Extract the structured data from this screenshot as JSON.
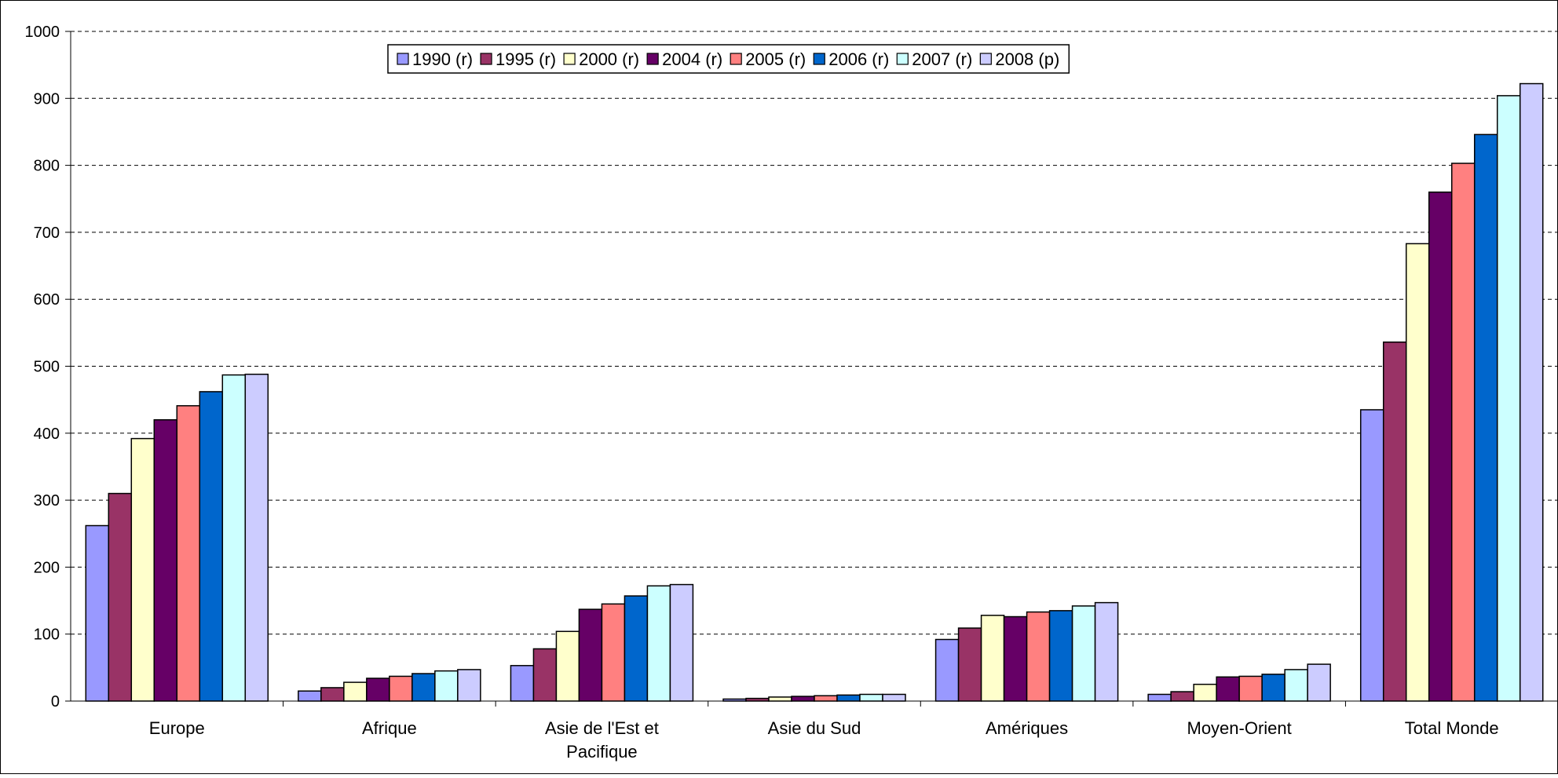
{
  "chart_data": {
    "type": "bar",
    "title": "",
    "xlabel": "",
    "ylabel": "",
    "ylim": [
      0,
      1000
    ],
    "yticks": [
      0,
      100,
      200,
      300,
      400,
      500,
      600,
      700,
      800,
      900,
      1000
    ],
    "grid": true,
    "legend_position": "top-center",
    "categories": [
      [
        "Europe"
      ],
      [
        "Afrique"
      ],
      [
        "Asie de l'Est et",
        "Pacifique"
      ],
      [
        "Asie du Sud"
      ],
      [
        "Amériques"
      ],
      [
        "Moyen-Orient"
      ],
      [
        "Total Monde"
      ]
    ],
    "series": [
      {
        "name": "1990 (r)",
        "color": "#9999ff",
        "values": [
          262,
          15,
          53,
          3,
          92,
          10,
          435
        ]
      },
      {
        "name": "1995 (r)",
        "color": "#993366",
        "values": [
          310,
          20,
          78,
          4,
          109,
          14,
          536
        ]
      },
      {
        "name": "2000 (r)",
        "color": "#ffffcc",
        "values": [
          392,
          28,
          104,
          6,
          128,
          25,
          683
        ]
      },
      {
        "name": "2004 (r)",
        "color": "#660066",
        "values": [
          420,
          34,
          137,
          7,
          126,
          36,
          760
        ]
      },
      {
        "name": "2005 (r)",
        "color": "#ff8080",
        "values": [
          441,
          37,
          145,
          8,
          133,
          37,
          803
        ]
      },
      {
        "name": "2006 (r)",
        "color": "#0066cc",
        "values": [
          462,
          41,
          157,
          9,
          135,
          40,
          846
        ]
      },
      {
        "name": "2007 (r)",
        "color": "#ccffff",
        "values": [
          487,
          45,
          172,
          10,
          142,
          47,
          904
        ]
      },
      {
        "name": "2008 (p)",
        "color": "#ccccff",
        "values": [
          488,
          47,
          174,
          10,
          147,
          55,
          922
        ]
      }
    ]
  }
}
